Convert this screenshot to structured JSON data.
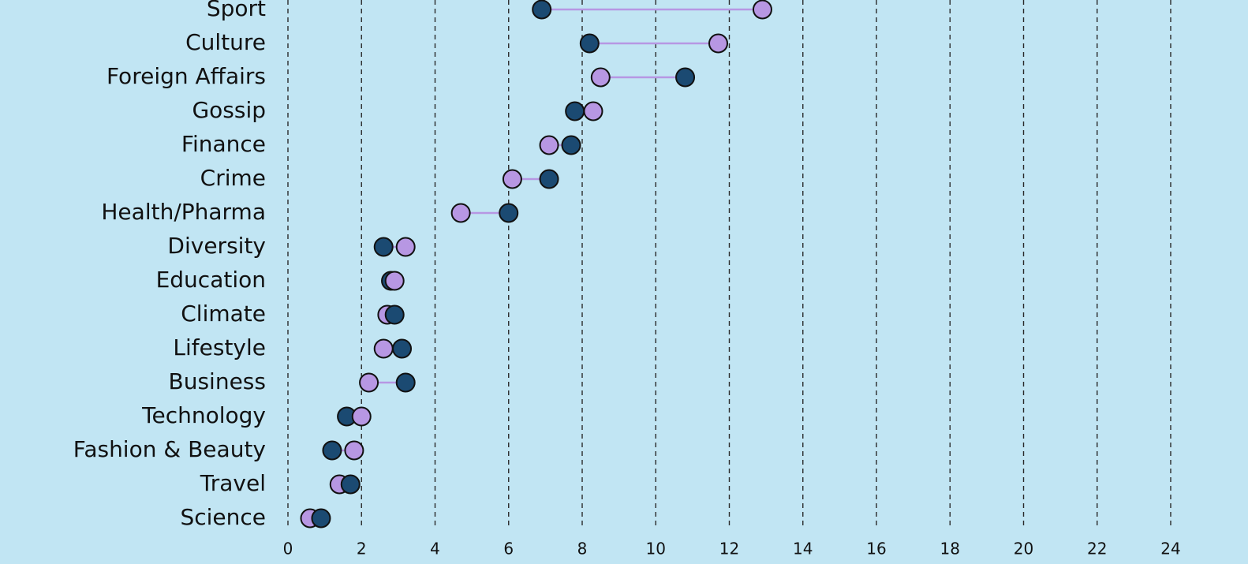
{
  "colors": {
    "background": "#c1e5f3",
    "series_a": "#b797e3",
    "series_b": "#1b4a72",
    "connector": "#b797e3",
    "grid": "#2a2a2a",
    "text": "#111111"
  },
  "chart_data": {
    "type": "dumbbell",
    "title": "",
    "xlabel": "",
    "ylabel": "",
    "xlim": [
      0,
      24
    ],
    "x_ticks": [
      0,
      2,
      4,
      6,
      8,
      10,
      12,
      14,
      16,
      18,
      20,
      22,
      24
    ],
    "grid": true,
    "categories": [
      "Sport",
      "Culture",
      "Foreign Affairs",
      "Gossip",
      "Finance",
      "Crime",
      "Health/Pharma",
      "Diversity",
      "Education",
      "Climate",
      "Lifestyle",
      "Business",
      "Technology",
      "Fashion & Beauty",
      "Travel",
      "Science"
    ],
    "series": [
      {
        "color": "#b797e3",
        "values": [
          12.9,
          11.7,
          8.5,
          8.3,
          7.1,
          6.1,
          4.7,
          3.2,
          2.9,
          2.7,
          2.6,
          2.2,
          2.0,
          1.8,
          1.4,
          0.6
        ]
      },
      {
        "color": "#1b4a72",
        "values": [
          6.9,
          8.2,
          10.8,
          7.8,
          7.7,
          7.1,
          6.0,
          2.6,
          2.8,
          2.9,
          3.1,
          3.2,
          1.6,
          1.2,
          1.7,
          0.9
        ]
      }
    ]
  }
}
